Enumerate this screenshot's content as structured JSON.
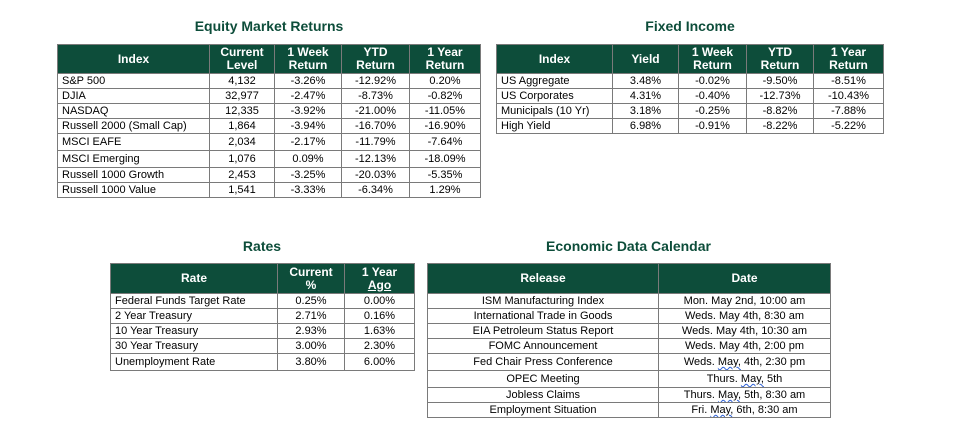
{
  "equity": {
    "title": "Equity Market Returns",
    "headers": {
      "index": "Index",
      "level": [
        "Current",
        "Level"
      ],
      "week": [
        "1 Week",
        "Return"
      ],
      "ytd": [
        "YTD",
        "Return"
      ],
      "year": [
        "1 Year",
        "Return"
      ]
    },
    "rows": [
      {
        "name": "S&P 500",
        "level": "4,132",
        "week": "-3.26%",
        "ytd": "-12.92%",
        "year": "0.20%"
      },
      {
        "name": "DJIA",
        "level": "32,977",
        "week": "-2.47%",
        "ytd": "-8.73%",
        "year": "-0.82%"
      },
      {
        "name": "NASDAQ",
        "level": "12,335",
        "week": "-3.92%",
        "ytd": "-21.00%",
        "year": "-11.05%"
      },
      {
        "name": "Russell 2000 (Small Cap)",
        "level": "1,864",
        "week": "-3.94%",
        "ytd": "-16.70%",
        "year": "-16.90%"
      },
      {
        "name": "MSCI EAFE",
        "level": "2,034",
        "week": "-2.17%",
        "ytd": "-11.79%",
        "year": "-7.64%"
      },
      {
        "name": "MSCI Emerging",
        "level": "1,076",
        "week": "0.09%",
        "ytd": "-12.13%",
        "year": "-18.09%"
      },
      {
        "name": "Russell 1000 Growth",
        "level": "2,453",
        "week": "-3.25%",
        "ytd": "-20.03%",
        "year": "-5.35%"
      },
      {
        "name": "Russell 1000 Value",
        "level": "1,541",
        "week": "-3.33%",
        "ytd": "-6.34%",
        "year": "1.29%"
      }
    ]
  },
  "fixed": {
    "title": "Fixed Income",
    "headers": {
      "index": "Index",
      "yield": "Yield",
      "week": [
        "1 Week",
        "Return"
      ],
      "ytd": [
        "YTD",
        "Return"
      ],
      "year": [
        "1 Year",
        "Return"
      ]
    },
    "rows": [
      {
        "name": "US Aggregate",
        "yield": "3.48%",
        "week": "-0.02%",
        "ytd": "-9.50%",
        "year": "-8.51%"
      },
      {
        "name": "US Corporates",
        "yield": "4.31%",
        "week": "-0.40%",
        "ytd": "-12.73%",
        "year": "-10.43%"
      },
      {
        "name": "Municipals (10 Yr)",
        "yield": "3.18%",
        "week": "-0.25%",
        "ytd": "-8.82%",
        "year": "-7.88%"
      },
      {
        "name": "High Yield",
        "yield": "6.98%",
        "week": "-0.91%",
        "ytd": "-8.22%",
        "year": "-5.22%"
      }
    ]
  },
  "rates": {
    "title": "Rates",
    "headers": {
      "rate": "Rate",
      "current": [
        "Current",
        "%"
      ],
      "year": [
        "1 Year",
        "Ago"
      ]
    },
    "rows": [
      {
        "name": "Federal Funds Target Rate",
        "current": "0.25%",
        "ago": "0.00%"
      },
      {
        "name": "2 Year Treasury",
        "current": "2.71%",
        "ago": "0.16%"
      },
      {
        "name": "10 Year Treasury",
        "current": "2.93%",
        "ago": "1.63%"
      },
      {
        "name": "30 Year Treasury",
        "current": "3.00%",
        "ago": "2.30%"
      },
      {
        "name": "Unemployment Rate",
        "current": "3.80%",
        "ago": "6.00%"
      }
    ]
  },
  "calendar": {
    "title": "Economic Data Calendar",
    "headers": {
      "release": "Release",
      "date": "Date"
    },
    "rows": [
      {
        "release": "ISM Manufacturing Index",
        "d1": "Mon. May 2nd, 10:00 am",
        "mark": "",
        "d2": ""
      },
      {
        "release": "International Trade in Goods",
        "d1": "Weds. May 4th, 8:30 am",
        "mark": "",
        "d2": ""
      },
      {
        "release": "EIA Petroleum Status Report",
        "d1": "Weds. May 4th, 10:30 am",
        "mark": "",
        "d2": ""
      },
      {
        "release": "FOMC Announcement",
        "d1": "Weds. May 4th, 2:00 pm",
        "mark": "",
        "d2": ""
      },
      {
        "release": "Fed Chair Press Conference",
        "d1": "Weds. ",
        "mark": "May,",
        "d2": " 4th, 2:30 pm"
      },
      {
        "release": "OPEC Meeting",
        "d1": "Thurs. ",
        "mark": "May,",
        "d2": " 5th"
      },
      {
        "release": "Jobless Claims",
        "d1": "Thurs. ",
        "mark": "May,",
        "d2": " 5th, 8:30 am"
      },
      {
        "release": "Employment Situation",
        "d1": "Fri. ",
        "mark": "May,",
        "d2": " 6th, 8:30 am"
      }
    ]
  },
  "colors": {
    "header_bg": "#0d4d3a",
    "title": "#0d4d3a",
    "border": "#7a7a7a"
  }
}
